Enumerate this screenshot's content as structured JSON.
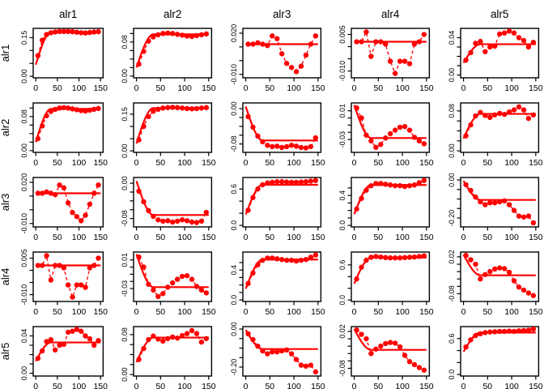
{
  "chart_data": {
    "type": "line",
    "layout": "5x5-panel-matrix",
    "description_title": "",
    "variables": [
      "alr1",
      "alr2",
      "alr3",
      "alr4",
      "alr5"
    ],
    "column_titles": [
      "alr1",
      "alr2",
      "alr3",
      "alr4",
      "alr5"
    ],
    "row_labels": [
      "alr1",
      "alr2",
      "alr3",
      "alr4",
      "alr5"
    ],
    "x": [
      5,
      15,
      25,
      35,
      45,
      55,
      65,
      75,
      85,
      95,
      105,
      115,
      125,
      135,
      145
    ],
    "xlim": [
      -6,
      156
    ],
    "x_ticks": [
      0,
      50,
      100,
      150
    ],
    "x_tick_labels": [
      "0",
      "50",
      "100",
      "150"
    ],
    "model_range": 35,
    "colors": {
      "series": "#ff0000",
      "axis": "#000000",
      "background": "#ffffff"
    },
    "style": {
      "empirical": "red filled points joined by dashed red line",
      "model": "solid red fitted line flattening at sill",
      "legend": "none",
      "grid": false
    },
    "panels": [
      {
        "row": "alr1",
        "col": "alr1",
        "ylim": [
          -0.006,
          0.186
        ],
        "ytick_vals": [
          0,
          0.05,
          0.1,
          0.15
        ],
        "ytick_labels": [
          "0.00",
          "",
          "",
          "0.15"
        ],
        "y": [
          0.08,
          0.14,
          0.162,
          0.169,
          0.172,
          0.174,
          0.174,
          0.174,
          0.173,
          0.171,
          0.169,
          0.168,
          0.17,
          0.172,
          0.173
        ],
        "nugget": 0.045,
        "sill": 0.171
      },
      {
        "row": "alr1",
        "col": "alr2",
        "ylim": [
          -0.004,
          0.112
        ],
        "ytick_vals": [
          0,
          0.02,
          0.04,
          0.06,
          0.08,
          0.1
        ],
        "ytick_labels": [
          "0.00",
          "",
          "",
          "",
          "0.08",
          ""
        ],
        "y": [
          0.028,
          0.058,
          0.082,
          0.092,
          0.097,
          0.1,
          0.101,
          0.1,
          0.098,
          0.096,
          0.094,
          0.093,
          0.095,
          0.097,
          0.099
        ],
        "nugget": 0.02,
        "sill": 0.098
      },
      {
        "row": "alr1",
        "col": "alr3",
        "ylim": [
          -0.0125,
          0.0235
        ],
        "ytick_vals": [
          -0.01,
          0,
          0.01,
          0.02
        ],
        "ytick_labels": [
          "-0.010",
          "",
          "",
          "0.020"
        ],
        "y": [
          0.012,
          0.012,
          0.013,
          0.012,
          0.011,
          0.018,
          0.016,
          0.005,
          -0.002,
          -0.005,
          -0.008,
          -0.004,
          0.004,
          0.012,
          0.018
        ],
        "nugget": 0.012,
        "sill": 0.012
      },
      {
        "row": "alr1",
        "col": "alr4",
        "ylim": [
          -0.0128,
          0.0075
        ],
        "ytick_vals": [
          -0.01,
          -0.005,
          0,
          0.005
        ],
        "ytick_labels": [
          "-0.010",
          "",
          "",
          "0.005"
        ],
        "y": [
          0.002,
          0.002,
          0.006,
          -0.004,
          0.002,
          0.002,
          0.001,
          -0.006,
          -0.011,
          -0.006,
          -0.006,
          -0.007,
          0.001,
          0.002,
          0.005
        ],
        "nugget": 0.002,
        "sill": 0.002
      },
      {
        "row": "alr1",
        "col": "alr5",
        "ylim": [
          -0.003,
          0.05
        ],
        "ytick_vals": [
          0,
          0.01,
          0.02,
          0.03,
          0.04
        ],
        "ytick_labels": [
          "0.00",
          "",
          "",
          "",
          "0.04"
        ],
        "y": [
          0.016,
          0.024,
          0.034,
          0.036,
          0.025,
          0.03,
          0.031,
          0.044,
          0.045,
          0.047,
          0.045,
          0.04,
          0.037,
          0.03,
          0.035
        ],
        "nugget": 0.013,
        "sill": 0.033
      },
      {
        "row": "alr2",
        "col": "alr1",
        "ylim": [
          -0.004,
          0.112
        ],
        "ytick_vals": [
          0,
          0.02,
          0.04,
          0.06,
          0.08,
          0.1
        ],
        "ytick_labels": [
          "0.00",
          "",
          "",
          "",
          "0.08",
          ""
        ],
        "y": [
          0.028,
          0.058,
          0.082,
          0.092,
          0.097,
          0.1,
          0.101,
          0.1,
          0.098,
          0.096,
          0.094,
          0.093,
          0.095,
          0.097,
          0.099
        ],
        "nugget": 0.02,
        "sill": 0.098
      },
      {
        "row": "alr2",
        "col": "alr2",
        "ylim": [
          -0.006,
          0.196
        ],
        "ytick_vals": [
          0,
          0.05,
          0.1,
          0.15
        ],
        "ytick_labels": [
          "0.00",
          "",
          "",
          "0.15"
        ],
        "y": [
          0.045,
          0.1,
          0.14,
          0.162,
          0.17,
          0.175,
          0.177,
          0.178,
          0.177,
          0.175,
          0.173,
          0.172,
          0.173,
          0.175,
          0.177
        ],
        "nugget": 0.03,
        "sill": 0.175
      },
      {
        "row": "alr2",
        "col": "alr3",
        "ylim": [
          -0.099,
          0.013
        ],
        "ytick_vals": [
          -0.08,
          -0.06,
          -0.04,
          -0.02,
          0
        ],
        "ytick_labels": [
          "-0.08",
          "",
          "",
          "",
          "0.00"
        ],
        "y": [
          -0.018,
          -0.042,
          -0.062,
          -0.075,
          -0.083,
          -0.086,
          -0.085,
          -0.088,
          -0.086,
          -0.083,
          -0.085,
          -0.088,
          -0.089,
          -0.086,
          -0.066
        ],
        "nugget": 0.005,
        "sill": -0.072
      },
      {
        "row": "alr2",
        "col": "alr4",
        "ylim": [
          -0.048,
          0.021
        ],
        "ytick_vals": [
          -0.03,
          -0.02,
          -0.01,
          0,
          0.01
        ],
        "ytick_labels": [
          "-0.03",
          "",
          "",
          "",
          "0.01"
        ],
        "y": [
          0.014,
          0.0,
          -0.024,
          -0.032,
          -0.041,
          -0.037,
          -0.028,
          -0.022,
          -0.017,
          -0.013,
          -0.012,
          -0.017,
          -0.027,
          -0.032,
          -0.036
        ],
        "nugget": 0.018,
        "sill": -0.028
      },
      {
        "row": "alr2",
        "col": "alr5",
        "ylim": [
          -0.003,
          0.096
        ],
        "ytick_vals": [
          0,
          0.02,
          0.04,
          0.06,
          0.08
        ],
        "ytick_labels": [
          "0.00",
          "",
          "",
          "",
          "0.08"
        ],
        "y": [
          0.03,
          0.052,
          0.07,
          0.077,
          0.071,
          0.067,
          0.072,
          0.075,
          0.073,
          0.078,
          0.082,
          0.088,
          0.082,
          0.065,
          0.072
        ],
        "nugget": 0.025,
        "sill": 0.074
      },
      {
        "row": "alr3",
        "col": "alr1",
        "ylim": [
          -0.0125,
          0.0235
        ],
        "ytick_vals": [
          -0.01,
          0,
          0.01,
          0.02
        ],
        "ytick_labels": [
          "-0.010",
          "",
          "",
          "0.020"
        ],
        "y": [
          0.012,
          0.012,
          0.013,
          0.012,
          0.011,
          0.018,
          0.016,
          0.005,
          -0.002,
          -0.005,
          -0.008,
          -0.004,
          0.004,
          0.012,
          0.018
        ],
        "nugget": 0.012,
        "sill": 0.012
      },
      {
        "row": "alr3",
        "col": "alr2",
        "ylim": [
          -0.099,
          0.013
        ],
        "ytick_vals": [
          -0.08,
          -0.06,
          -0.04,
          -0.02,
          0
        ],
        "ytick_labels": [
          "-0.08",
          "",
          "",
          "",
          "0.00"
        ],
        "y": [
          -0.018,
          -0.042,
          -0.062,
          -0.075,
          -0.083,
          -0.086,
          -0.085,
          -0.088,
          -0.086,
          -0.083,
          -0.085,
          -0.088,
          -0.089,
          -0.086,
          -0.066
        ],
        "nugget": 0.005,
        "sill": -0.072
      },
      {
        "row": "alr3",
        "col": "alr3",
        "ylim": [
          -0.025,
          0.79
        ],
        "ytick_vals": [
          0,
          0.2,
          0.4,
          0.6
        ],
        "ytick_labels": [
          "0.0",
          "",
          "",
          "0.6"
        ],
        "y": [
          0.25,
          0.46,
          0.6,
          0.67,
          0.7,
          0.71,
          0.72,
          0.72,
          0.715,
          0.71,
          0.71,
          0.715,
          0.72,
          0.73,
          0.74
        ],
        "nugget": 0.18,
        "sill": 0.67
      },
      {
        "row": "alr3",
        "col": "alr4",
        "ylim": [
          -0.02,
          0.64
        ],
        "ytick_vals": [
          0,
          0.1,
          0.2,
          0.3,
          0.4,
          0.5
        ],
        "ytick_labels": [
          "0.0",
          "",
          "",
          "",
          "0.4",
          ""
        ],
        "y": [
          0.22,
          0.36,
          0.47,
          0.53,
          0.56,
          0.56,
          0.55,
          0.54,
          0.53,
          0.53,
          0.52,
          0.53,
          0.54,
          0.57,
          0.6
        ],
        "nugget": 0.15,
        "sill": 0.54
      },
      {
        "row": "alr3",
        "col": "alr5",
        "ylim": [
          -0.247,
          0.013
        ],
        "ytick_vals": [
          -0.2,
          -0.15,
          -0.1,
          -0.05,
          0
        ],
        "ytick_labels": [
          "-0.20",
          "",
          "",
          "",
          "0.00"
        ],
        "y": [
          -0.025,
          -0.055,
          -0.09,
          -0.115,
          -0.13,
          -0.12,
          -0.12,
          -0.115,
          -0.11,
          -0.13,
          -0.16,
          -0.19,
          -0.195,
          -0.19,
          -0.225
        ],
        "nugget": -0.005,
        "sill": -0.105
      },
      {
        "row": "alr4",
        "col": "alr1",
        "ylim": [
          -0.0128,
          0.0075
        ],
        "ytick_vals": [
          -0.01,
          -0.005,
          0,
          0.005
        ],
        "ytick_labels": [
          "-0.010",
          "",
          "",
          "0.005"
        ],
        "y": [
          0.002,
          0.002,
          0.006,
          -0.004,
          0.002,
          0.002,
          0.001,
          -0.006,
          -0.011,
          -0.006,
          -0.006,
          -0.007,
          0.001,
          0.002,
          0.005
        ],
        "nugget": 0.002,
        "sill": 0.002
      },
      {
        "row": "alr4",
        "col": "alr2",
        "ylim": [
          -0.048,
          0.021
        ],
        "ytick_vals": [
          -0.03,
          -0.02,
          -0.01,
          0,
          0.01
        ],
        "ytick_labels": [
          "-0.03",
          "",
          "",
          "",
          "0.01"
        ],
        "y": [
          0.014,
          0.0,
          -0.024,
          -0.032,
          -0.041,
          -0.037,
          -0.028,
          -0.022,
          -0.017,
          -0.013,
          -0.012,
          -0.017,
          -0.027,
          -0.032,
          -0.036
        ],
        "nugget": 0.018,
        "sill": -0.028
      },
      {
        "row": "alr4",
        "col": "alr3",
        "ylim": [
          -0.02,
          0.64
        ],
        "ytick_vals": [
          0,
          0.1,
          0.2,
          0.3,
          0.4,
          0.5
        ],
        "ytick_labels": [
          "0.0",
          "",
          "",
          "",
          "0.4",
          ""
        ],
        "y": [
          0.22,
          0.36,
          0.47,
          0.53,
          0.56,
          0.56,
          0.55,
          0.54,
          0.53,
          0.53,
          0.52,
          0.53,
          0.54,
          0.57,
          0.6
        ],
        "nugget": 0.15,
        "sill": 0.54
      },
      {
        "row": "alr4",
        "col": "alr4",
        "ylim": [
          -0.025,
          0.82
        ],
        "ytick_vals": [
          0,
          0.2,
          0.4,
          0.6
        ],
        "ytick_labels": [
          "0.0",
          "",
          "",
          "0.6"
        ],
        "y": [
          0.36,
          0.56,
          0.68,
          0.73,
          0.745,
          0.735,
          0.725,
          0.72,
          0.72,
          0.72,
          0.725,
          0.73,
          0.735,
          0.745,
          0.755
        ],
        "nugget": 0.28,
        "sill": 0.725
      },
      {
        "row": "alr4",
        "col": "alr5",
        "ylim": [
          -0.101,
          0.033
        ],
        "ytick_vals": [
          -0.08,
          -0.06,
          -0.04,
          -0.02,
          0,
          0.02
        ],
        "ytick_labels": [
          "-0.08",
          "",
          "",
          "",
          "",
          "0.02"
        ],
        "y": [
          0.024,
          0.012,
          0.0,
          -0.04,
          -0.028,
          -0.02,
          -0.013,
          -0.01,
          -0.012,
          -0.022,
          -0.045,
          -0.062,
          -0.07,
          -0.078,
          -0.085
        ],
        "nugget": 0.026,
        "sill": -0.03
      },
      {
        "row": "alr5",
        "col": "alr1",
        "ylim": [
          -0.003,
          0.05
        ],
        "ytick_vals": [
          0,
          0.01,
          0.02,
          0.03,
          0.04
        ],
        "ytick_labels": [
          "0.00",
          "",
          "",
          "",
          "0.04"
        ],
        "y": [
          0.016,
          0.024,
          0.034,
          0.036,
          0.025,
          0.03,
          0.031,
          0.044,
          0.045,
          0.047,
          0.045,
          0.04,
          0.037,
          0.03,
          0.035
        ],
        "nugget": 0.013,
        "sill": 0.033
      },
      {
        "row": "alr5",
        "col": "alr2",
        "ylim": [
          -0.003,
          0.096
        ],
        "ytick_vals": [
          0,
          0.02,
          0.04,
          0.06,
          0.08
        ],
        "ytick_labels": [
          "0.00",
          "",
          "",
          "",
          "0.08"
        ],
        "y": [
          0.03,
          0.052,
          0.07,
          0.077,
          0.071,
          0.067,
          0.072,
          0.075,
          0.073,
          0.078,
          0.082,
          0.088,
          0.082,
          0.065,
          0.072
        ],
        "nugget": 0.025,
        "sill": 0.074
      },
      {
        "row": "alr5",
        "col": "alr3",
        "ylim": [
          -0.247,
          0.013
        ],
        "ytick_vals": [
          -0.2,
          -0.15,
          -0.1,
          -0.05,
          0
        ],
        "ytick_labels": [
          "-0.20",
          "",
          "",
          "",
          "0.00"
        ],
        "y": [
          -0.025,
          -0.055,
          -0.09,
          -0.115,
          -0.13,
          -0.12,
          -0.12,
          -0.115,
          -0.11,
          -0.13,
          -0.16,
          -0.19,
          -0.195,
          -0.19,
          -0.225
        ],
        "nugget": -0.005,
        "sill": -0.105
      },
      {
        "row": "alr5",
        "col": "alr4",
        "ylim": [
          -0.101,
          0.033
        ],
        "ytick_vals": [
          -0.08,
          -0.06,
          -0.04,
          -0.02,
          0,
          0.02
        ],
        "ytick_labels": [
          "-0.08",
          "",
          "",
          "",
          "",
          "0.02"
        ],
        "y": [
          0.024,
          0.012,
          0.0,
          -0.04,
          -0.028,
          -0.02,
          -0.013,
          -0.01,
          -0.012,
          -0.022,
          -0.045,
          -0.062,
          -0.07,
          -0.078,
          -0.085
        ],
        "nugget": 0.026,
        "sill": -0.03
      },
      {
        "row": "alr5",
        "col": "alr5",
        "ylim": [
          -0.025,
          0.8
        ],
        "ytick_vals": [
          0,
          0.2,
          0.4,
          0.6
        ],
        "ytick_labels": [
          "0.0",
          "",
          "",
          "0.6"
        ],
        "y": [
          0.46,
          0.58,
          0.65,
          0.68,
          0.7,
          0.71,
          0.715,
          0.72,
          0.72,
          0.725,
          0.72,
          0.73,
          0.735,
          0.74,
          0.76
        ],
        "nugget": 0.38,
        "sill": 0.7
      }
    ]
  }
}
